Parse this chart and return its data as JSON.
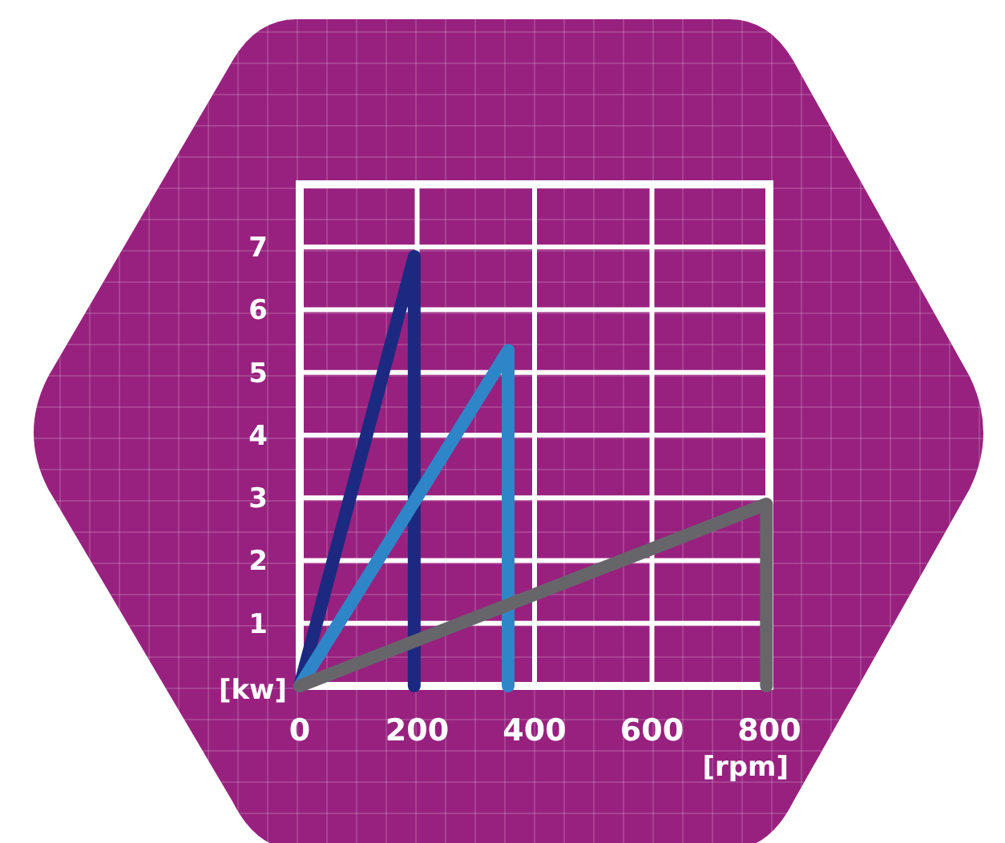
{
  "chart_data": {
    "type": "line",
    "xlabel": "[rpm]",
    "ylabel": "[kw]",
    "xlim": [
      0,
      800
    ],
    "xticks": [
      0,
      200,
      400,
      600,
      800
    ],
    "ylim": [
      0,
      8
    ],
    "yticks": [
      1,
      2,
      3,
      4,
      5,
      6,
      7,
      {
        "value": 8,
        "label": null
      }
    ],
    "grid": true,
    "marker": "none",
    "line_style": "solid",
    "series": [
      {
        "color": "#1b2a80",
        "x": [
          0,
          195,
          195
        ],
        "values": [
          0,
          6.85,
          0
        ]
      },
      {
        "color": "#2e86c8",
        "x": [
          0,
          355,
          355
        ],
        "values": [
          0,
          5.35,
          0
        ]
      },
      {
        "color": "#66666a",
        "x": [
          0,
          795,
          795
        ],
        "values": [
          0,
          2.9,
          0
        ]
      }
    ]
  }
}
